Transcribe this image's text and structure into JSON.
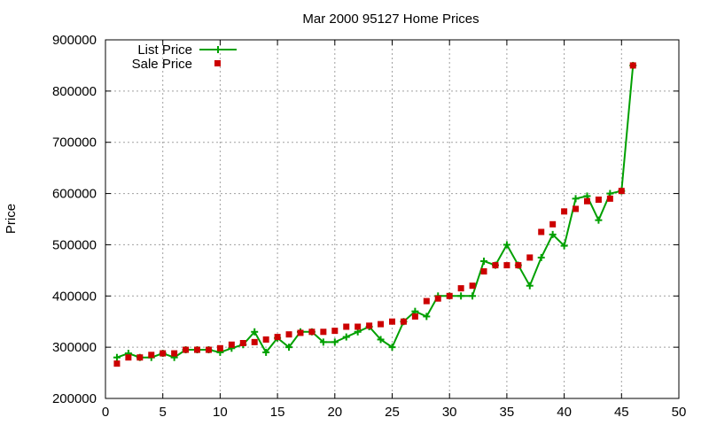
{
  "chart_data": {
    "type": "line",
    "title": "Mar 2000 95127 Home Prices",
    "xlabel": "",
    "ylabel": "Price",
    "xlim": [
      0,
      50
    ],
    "ylim": [
      200000,
      900000
    ],
    "x_ticks": [
      0,
      5,
      10,
      15,
      20,
      25,
      30,
      35,
      40,
      45,
      50
    ],
    "y_ticks": [
      200000,
      300000,
      400000,
      500000,
      600000,
      700000,
      800000,
      900000
    ],
    "grid": true,
    "legend_position": "top-left",
    "series": [
      {
        "name": "List Price",
        "style": "line-with-plus-markers",
        "color": "#00a000",
        "x": [
          1,
          2,
          3,
          4,
          5,
          6,
          7,
          8,
          9,
          10,
          11,
          12,
          13,
          14,
          15,
          16,
          17,
          18,
          19,
          20,
          21,
          22,
          23,
          24,
          25,
          26,
          27,
          28,
          29,
          30,
          31,
          32,
          33,
          34,
          35,
          36,
          37,
          38,
          39,
          40,
          41,
          42,
          43,
          44,
          45,
          46
        ],
        "y": [
          280000,
          288000,
          280000,
          280000,
          288000,
          280000,
          295000,
          295000,
          295000,
          290000,
          298000,
          305000,
          330000,
          290000,
          318000,
          300000,
          330000,
          330000,
          310000,
          310000,
          320000,
          330000,
          340000,
          315000,
          300000,
          350000,
          370000,
          360000,
          400000,
          400000,
          400000,
          400000,
          468000,
          460000,
          500000,
          460000,
          420000,
          475000,
          520000,
          498000,
          590000,
          595000,
          548000,
          600000,
          605000,
          850000
        ]
      },
      {
        "name": "Sale Price",
        "style": "square-markers",
        "color": "#cc0000",
        "x": [
          1,
          2,
          3,
          4,
          5,
          6,
          7,
          8,
          9,
          10,
          11,
          12,
          13,
          14,
          15,
          16,
          17,
          18,
          19,
          20,
          21,
          22,
          23,
          24,
          25,
          26,
          27,
          28,
          29,
          30,
          31,
          32,
          33,
          34,
          35,
          36,
          37,
          38,
          39,
          40,
          41,
          42,
          43,
          44,
          45,
          46
        ],
        "y": [
          268000,
          280000,
          280000,
          285000,
          288000,
          288000,
          295000,
          295000,
          295000,
          298000,
          305000,
          308000,
          310000,
          315000,
          320000,
          325000,
          328000,
          330000,
          330000,
          332000,
          340000,
          340000,
          342000,
          345000,
          350000,
          350000,
          360000,
          390000,
          395000,
          400000,
          415000,
          420000,
          448000,
          460000,
          460000,
          460000,
          475000,
          525000,
          540000,
          565000,
          570000,
          585000,
          588000,
          590000,
          605000,
          850000
        ]
      }
    ]
  }
}
